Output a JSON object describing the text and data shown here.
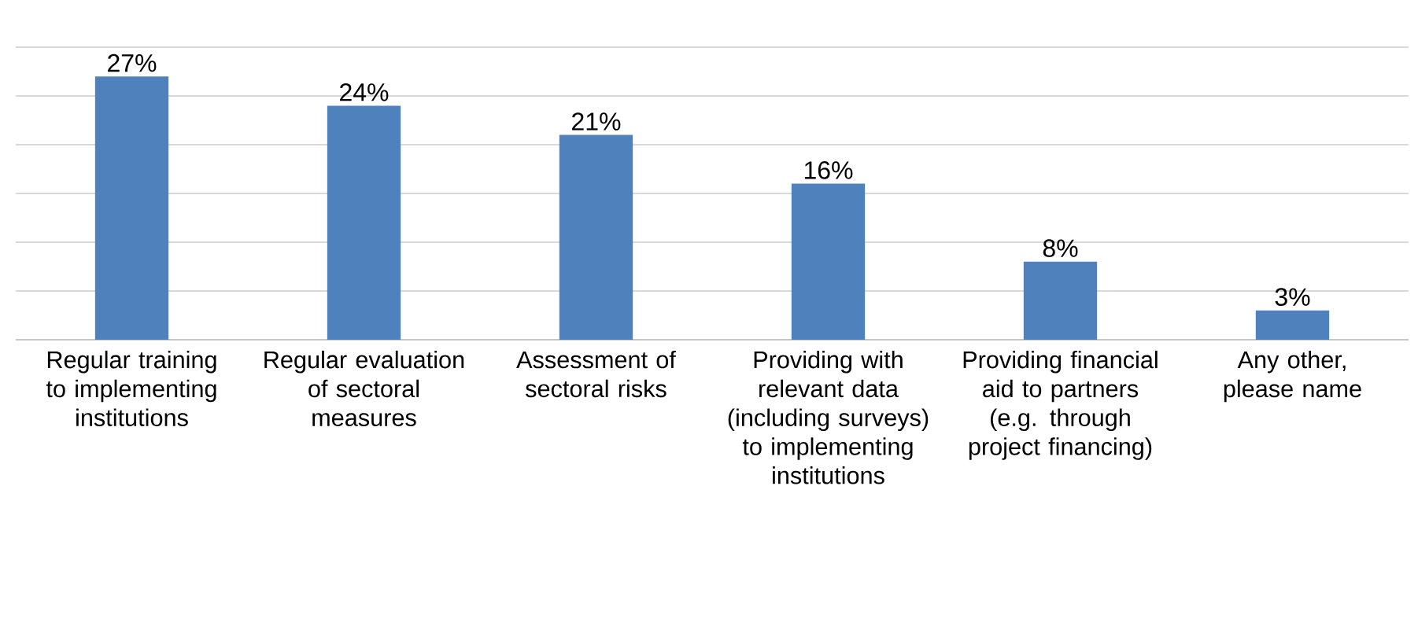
{
  "chart_data": {
    "type": "bar",
    "categories": [
      "Regular training to implementing institutions",
      "Regular evaluation of sectoral measures",
      "Assessment of sectoral risks",
      "Providing with relevant data (including surveys) to implementing institutions",
      "Providing financial aid to partners (e.g. through project financing)",
      "Any other, please name"
    ],
    "values": [
      27,
      24,
      21,
      16,
      8,
      3
    ],
    "color": "#4f81bd",
    "data_labels": true,
    "value_labels": [
      "27%",
      "24%",
      "21%",
      "16%",
      "8%",
      "3%"
    ],
    "ylim": [
      0,
      30
    ],
    "yticks": [
      {
        "value": 0,
        "label": null
      },
      {
        "value": 5,
        "label": null
      },
      {
        "value": 10,
        "label": null
      },
      {
        "value": 15,
        "label": null
      },
      {
        "value": 20,
        "label": null
      },
      {
        "value": 25,
        "label": null
      },
      {
        "value": 30,
        "label": null
      }
    ],
    "tick_labels": "x",
    "grid": "y"
  }
}
